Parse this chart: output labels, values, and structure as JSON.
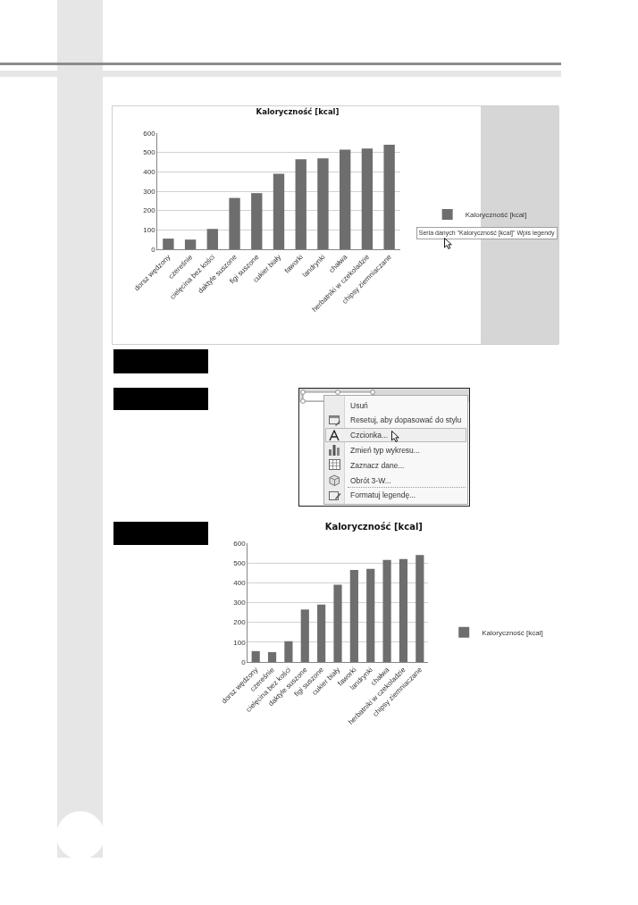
{
  "chart_data": [
    {
      "type": "bar",
      "title": "Kaloryczność [kcal]",
      "categories": [
        "dorsz wędzony",
        "czereśnie",
        "cielęcina bez kości",
        "daktyle suszone",
        "figi suszone",
        "cukier biały",
        "faworki",
        "landrynki",
        "chałwa",
        "herbatniki w czekoladzie",
        "chipsy ziemniaczane"
      ],
      "series": [
        {
          "name": "Kaloryczność [kcal]",
          "color": "#6e6e6e",
          "values": [
            55,
            50,
            105,
            265,
            290,
            390,
            465,
            470,
            515,
            520,
            540
          ]
        }
      ],
      "ylim": [
        0,
        600
      ],
      "yticks": [
        0,
        100,
        200,
        300,
        400,
        500,
        600
      ],
      "grid": "y",
      "legend": "right",
      "annotations": [
        "Seria danych \"Kaloryczność [kcal]\" Wpis legendy"
      ]
    },
    {
      "type": "other",
      "annotations": [
        "Usuń",
        "Resetuj, aby dopasować do stylu",
        "Czcionka...",
        "Zmień typ wykresu...",
        "Zaznacz dane...",
        "Obrót 3-W...",
        "Formatuj legendę..."
      ]
    },
    {
      "type": "bar",
      "title": "Kaloryczność [kcal]",
      "categories": [
        "dorsz wędzony",
        "czereśnie",
        "cielęcina bez kości",
        "daktyle suszone",
        "figi suszone",
        "cukier biały",
        "faworki",
        "landrynki",
        "chałwa",
        "herbatniki w czekoladzie",
        "chipsy ziemniaczane"
      ],
      "series": [
        {
          "name": "Kaloryczność [kcal]",
          "color": "#6e6e6e",
          "values": [
            55,
            50,
            105,
            265,
            290,
            390,
            465,
            470,
            515,
            520,
            540
          ]
        }
      ],
      "ylim": [
        0,
        600
      ],
      "yticks": [
        0,
        100,
        200,
        300,
        400,
        500,
        600
      ],
      "grid": "y",
      "legend": "right"
    }
  ]
}
